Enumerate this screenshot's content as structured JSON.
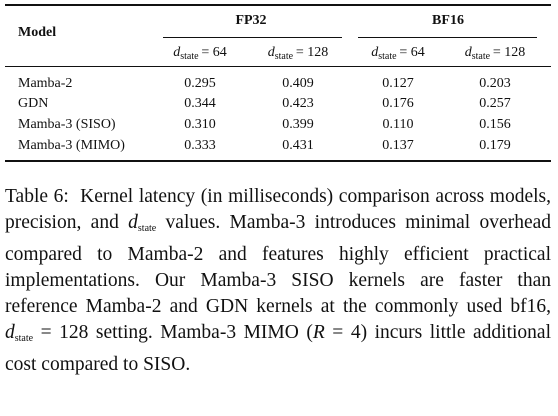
{
  "table": {
    "corner": "Model",
    "groups": [
      "FP32",
      "BF16"
    ],
    "subheaders": [
      {
        "var": "d",
        "sub": "state",
        "rest": "= 64"
      },
      {
        "var": "d",
        "sub": "state",
        "rest": "= 128"
      },
      {
        "var": "d",
        "sub": "state",
        "rest": "= 64"
      },
      {
        "var": "d",
        "sub": "state",
        "rest": "= 128"
      }
    ],
    "rows": [
      [
        "Mamba-2",
        "0.295",
        "0.409",
        "0.127",
        "0.203"
      ],
      [
        "GDN",
        "0.344",
        "0.423",
        "0.176",
        "0.257"
      ],
      [
        "Mamba-3 (SISO)",
        "0.310",
        "0.399",
        "0.110",
        "0.156"
      ],
      [
        "Mamba-3 (MIMO)",
        "0.333",
        "0.431",
        "0.137",
        "0.179"
      ]
    ]
  },
  "caption": {
    "label": "Table 6:",
    "parts": [
      {
        "text": "Kernel latency (in milliseconds) comparison across models, precision, and "
      },
      {
        "var": "d",
        "sub": "state"
      },
      {
        "text": " values. Mamba-3 introduces minimal overhead compared to Mamba-2 and features highly efficient practical implementations. Our Mamba-3 SISO kernels are faster than reference Mamba-2 and GDN kernels at the commonly used bf16, "
      },
      {
        "var": "d",
        "sub": "state"
      },
      {
        "text": " = 128 setting. Mamba-3 MIMO ("
      },
      {
        "var": "R"
      },
      {
        "text": " = 4) incurs little additional cost compared to SISO."
      }
    ]
  }
}
